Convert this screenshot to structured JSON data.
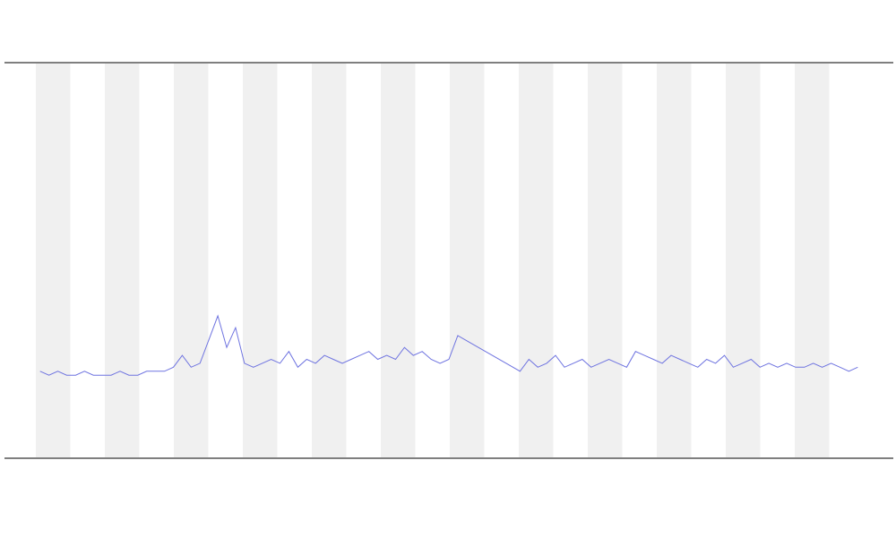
{
  "chart_data": {
    "type": "line",
    "x": [
      4,
      5,
      6,
      7,
      8,
      9,
      10,
      11,
      12,
      13,
      14,
      15,
      16,
      17,
      18,
      19,
      20,
      21,
      22,
      23,
      24,
      25,
      26,
      27,
      28,
      29,
      30,
      31,
      32,
      33,
      34,
      35,
      36,
      37,
      38,
      39,
      40,
      41,
      42,
      43,
      44,
      45,
      46,
      47,
      48,
      49,
      50,
      51,
      58,
      59,
      60,
      61,
      62,
      63,
      64,
      65,
      66,
      67,
      68,
      69,
      70,
      71,
      72,
      73,
      74,
      75,
      76,
      77,
      78,
      79,
      80,
      81,
      82,
      83,
      84,
      85,
      86,
      87,
      88,
      89,
      90,
      91,
      92,
      93,
      94,
      95,
      96
    ],
    "series": [
      {
        "color": "#6f74e0",
        "values": [
          22,
          21,
          22,
          21,
          21,
          22,
          21,
          21,
          21,
          22,
          21,
          21,
          22,
          22,
          22,
          23,
          26,
          23,
          24,
          30,
          36,
          28,
          33,
          24,
          23,
          24,
          25,
          24,
          27,
          23,
          25,
          24,
          26,
          25,
          24,
          25,
          26,
          27,
          25,
          26,
          25,
          28,
          26,
          27,
          25,
          24,
          25,
          31,
          22,
          25,
          23,
          24,
          26,
          23,
          24,
          25,
          23,
          24,
          25,
          24,
          23,
          27,
          26,
          25,
          24,
          26,
          25,
          24,
          23,
          25,
          24,
          26,
          23,
          24,
          25,
          23,
          24,
          23,
          24,
          23,
          23,
          24,
          23,
          24,
          23,
          22,
          23
        ]
      }
    ],
    "xlim": [
      0,
      100
    ],
    "ylim": [
      0,
      100
    ]
  }
}
